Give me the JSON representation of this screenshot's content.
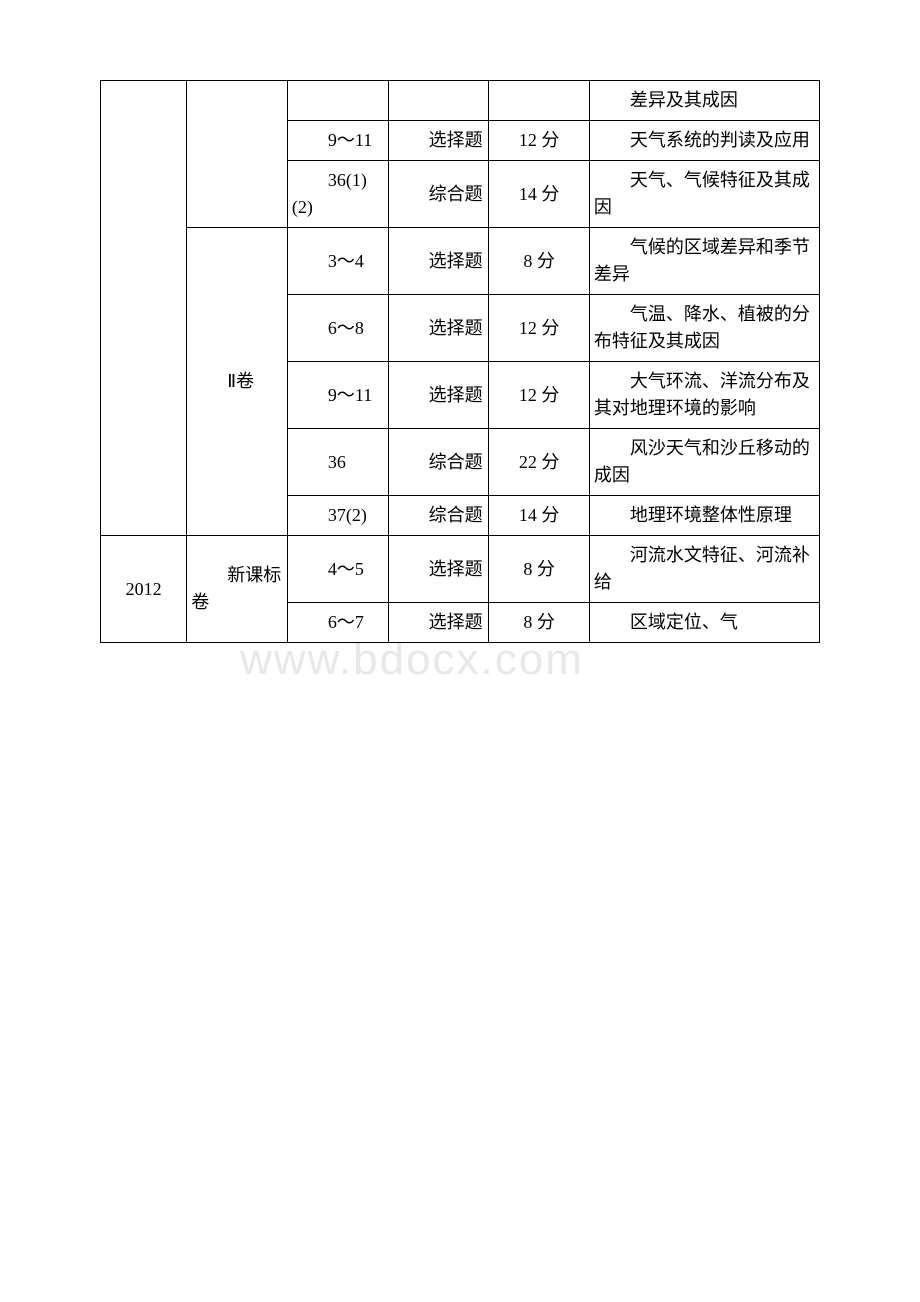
{
  "watermark": "www.bdocx.com",
  "rows": [
    {
      "year": "",
      "paper": "",
      "qnum": "",
      "qtype": "",
      "score": "",
      "topic": "差异及其成因"
    },
    {
      "qnum": "9～11",
      "qtype": "选择题",
      "score": "12 分",
      "topic": "天气系统的判读及应用"
    },
    {
      "qnum": "36(1)(2)",
      "qtype": "综合题",
      "score": "14 分",
      "topic": "天气、气候特征及其成因"
    },
    {
      "paper": "Ⅱ卷",
      "qnum": "3～4",
      "qtype": "选择题",
      "score": "8 分",
      "topic": "气候的区域差异和季节差异"
    },
    {
      "qnum": "6～8",
      "qtype": "选择题",
      "score": "12 分",
      "topic": "气温、降水、植被的分布特征及其成因"
    },
    {
      "qnum": "9～11",
      "qtype": "选择题",
      "score": "12 分",
      "topic": "大气环流、洋流分布及其对地理环境的影响"
    },
    {
      "qnum": "36",
      "qtype": "综合题",
      "score": "22 分",
      "topic": "风沙天气和沙丘移动的成因"
    },
    {
      "qnum": "37(2)",
      "qtype": "综合题",
      "score": "14 分",
      "topic": "地理环境整体性原理"
    },
    {
      "year": "2012",
      "paper": "新课标卷",
      "qnum": "4～5",
      "qtype": "选择题",
      "score": "8 分",
      "topic": "河流水文特征、河流补给"
    },
    {
      "qnum": "6～7",
      "qtype": "选择题",
      "score": "8 分",
      "topic": "区域定位、气"
    }
  ]
}
